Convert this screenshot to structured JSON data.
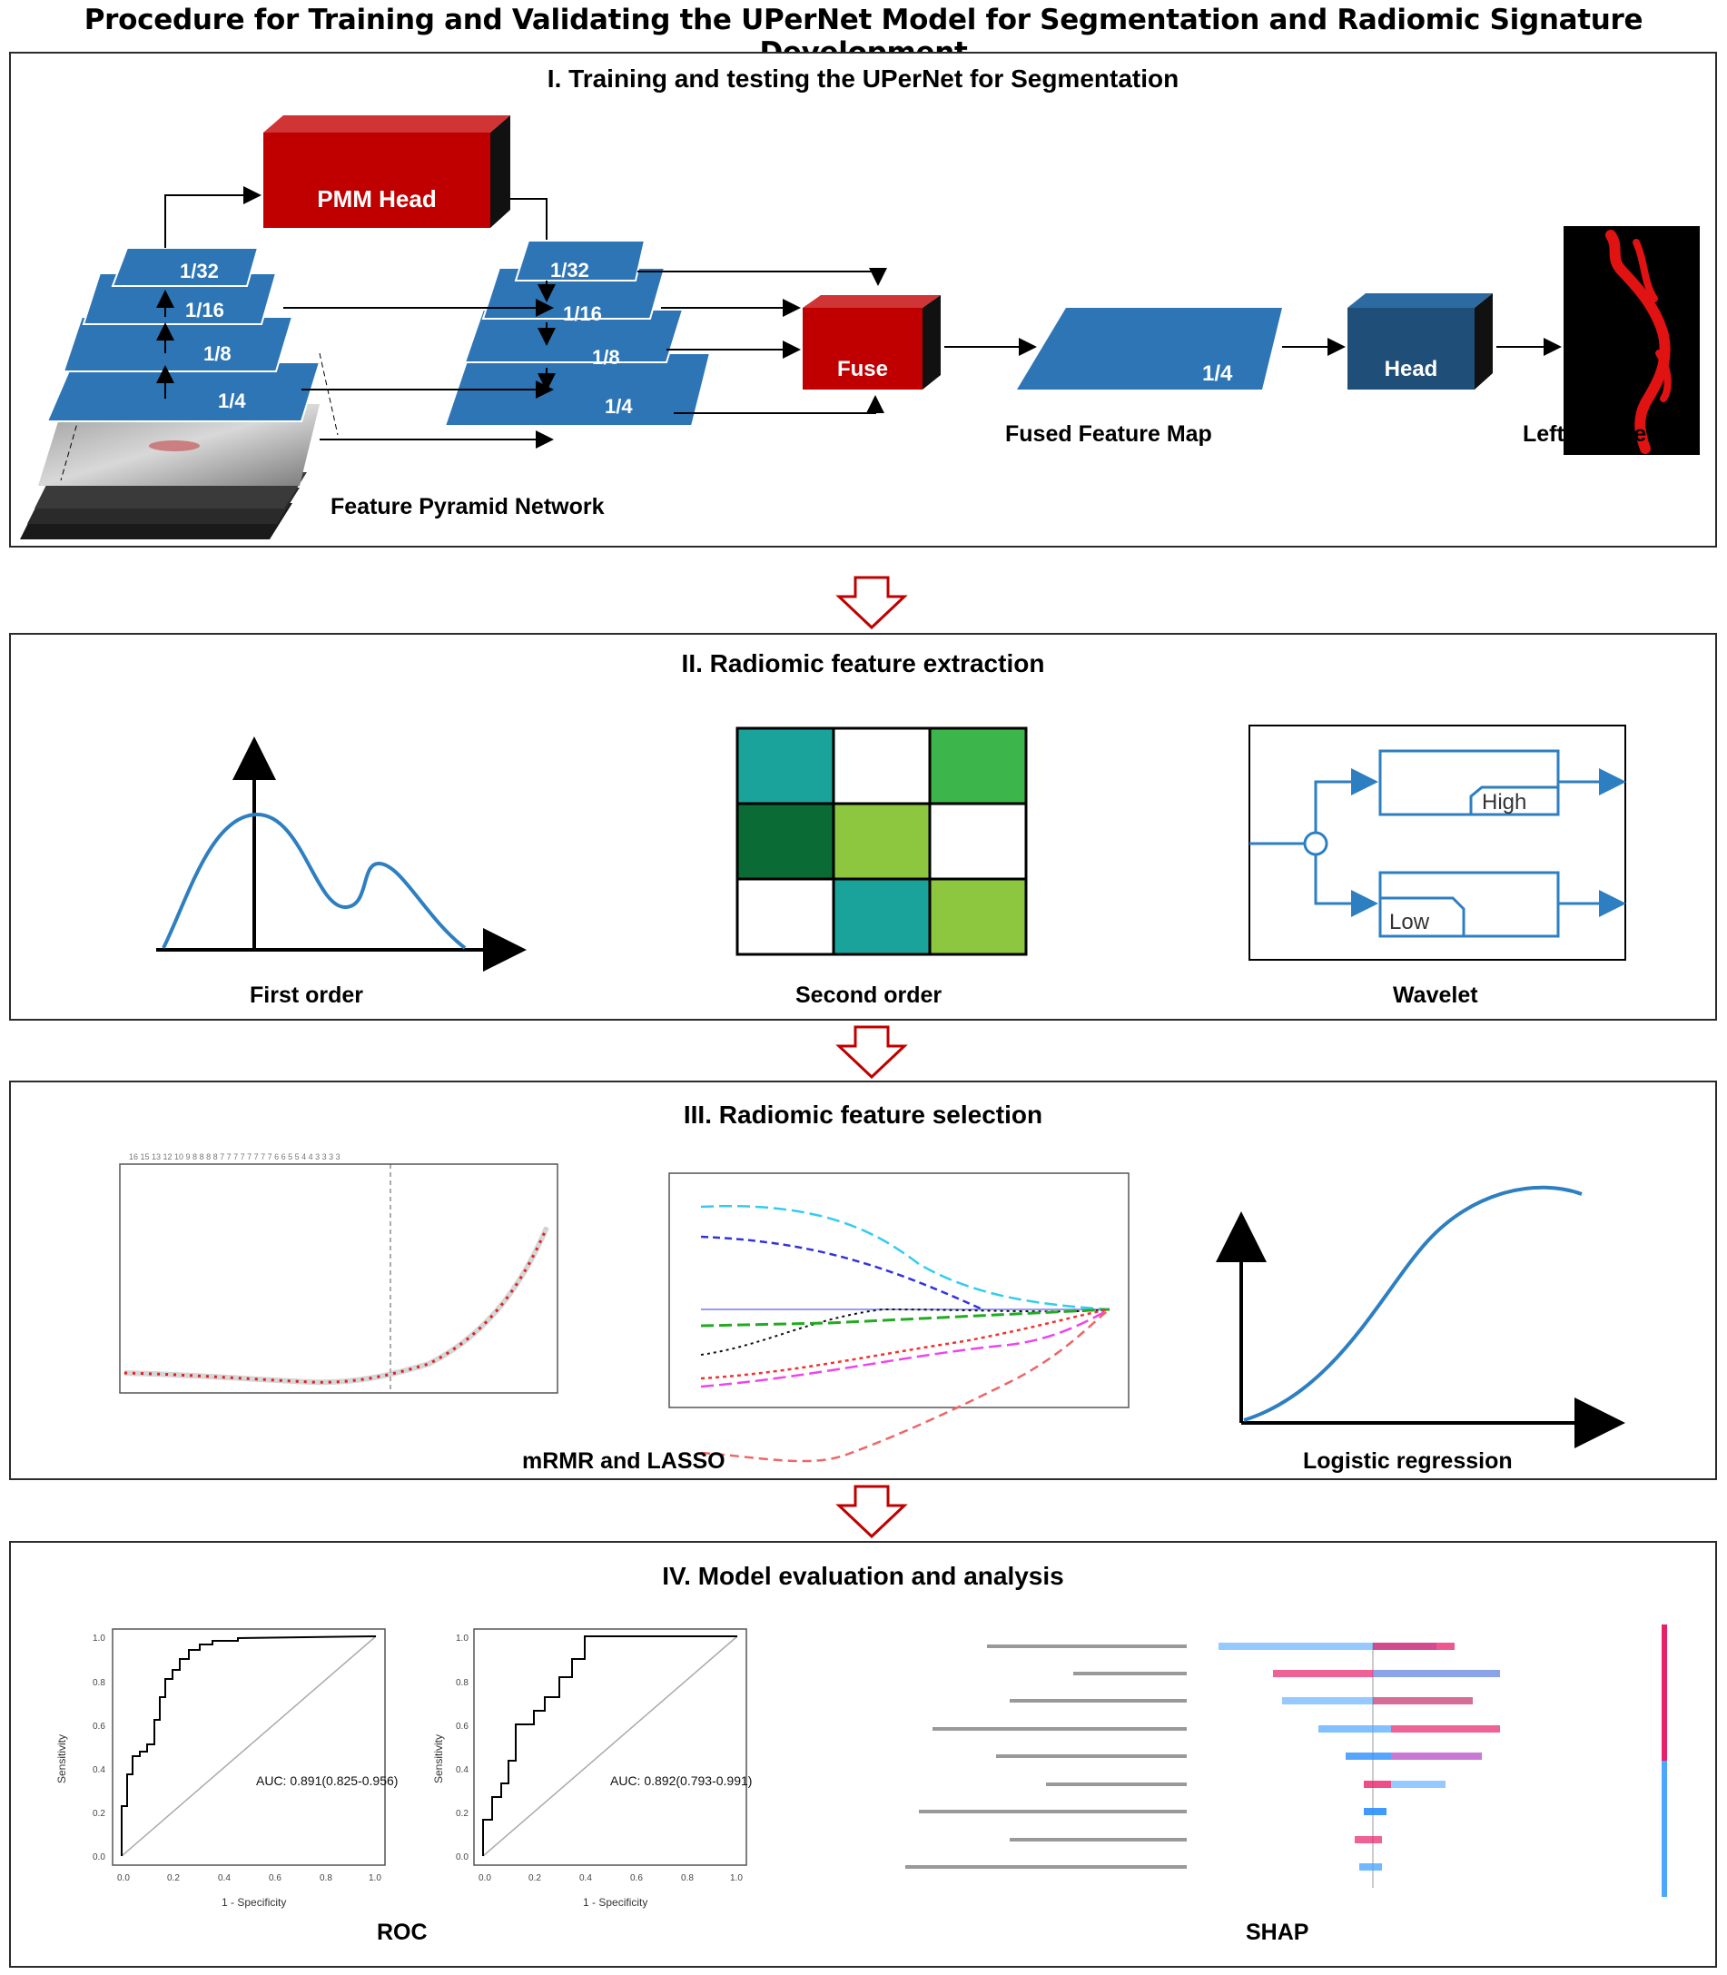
{
  "main_title": "Procedure for Training and Validating the UPerNet Model for Segmentation and Radiomic Signature Development",
  "panel1": {
    "title": "I. Training and testing the UPerNet for Segmentation",
    "pmm_head": "PMM Head",
    "fpn_levels": [
      "1/32",
      "1/16",
      "1/8",
      "1/4"
    ],
    "fuse": "Fuse",
    "fused_level": "1/4",
    "head": "Head",
    "fpn_label": "Feature Pyramid Network",
    "fused_label": "Fused Feature Map",
    "output_label": "Left iliac vein",
    "colors": {
      "blue": "#2e75b6",
      "red": "#c00000",
      "dark_blue": "#1f4e79"
    }
  },
  "panel2": {
    "title": "II. Radiomic feature extraction",
    "first_order": "First order",
    "second_order": "Second order",
    "wavelet": "Wavelet",
    "wavelet_high": "High",
    "wavelet_low": "Low"
  },
  "panel3": {
    "title": "III. Radiomic feature selection",
    "mrmr_lasso": "mRMR and LASSO",
    "logistic": "Logistic regression"
  },
  "panel4": {
    "title": "IV. Model evaluation and analysis",
    "roc_label": "ROC",
    "shap_label": "SHAP",
    "roc_plots": [
      {
        "auc_text": "AUC: 0.891(0.825-0.956)",
        "xlabel": "1 - Specificity",
        "ylabel": "Sensitivity",
        "ticks": [
          "0.0",
          "0.2",
          "0.4",
          "0.6",
          "0.8",
          "1.0"
        ]
      },
      {
        "auc_text": "AUC: 0.892(0.793-0.991)",
        "xlabel": "1 - Specificity",
        "ylabel": "Sensitivity",
        "ticks": [
          "0.0",
          "0.2",
          "0.4",
          "0.6",
          "0.8",
          "1.0"
        ]
      }
    ]
  }
}
